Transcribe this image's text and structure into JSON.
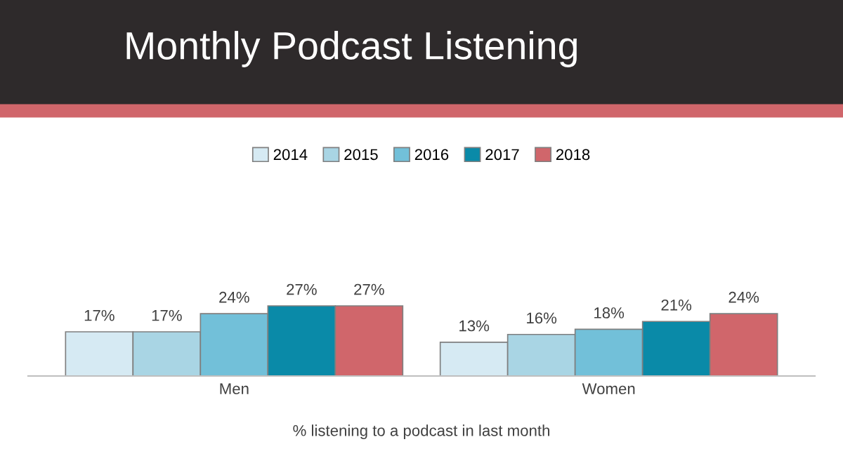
{
  "chart_data": {
    "type": "bar",
    "title": "Monthly Podcast Listening",
    "xlabel": "% listening to a podcast in last month",
    "categories": [
      "Men",
      "Women"
    ],
    "series": [
      {
        "name": "2014",
        "color": "#d6eaf3",
        "values": [
          17,
          13
        ],
        "value_labels": [
          "17%",
          "13%"
        ]
      },
      {
        "name": "2015",
        "color": "#a9d5e4",
        "values": [
          17,
          16
        ],
        "value_labels": [
          "17%",
          "16%"
        ]
      },
      {
        "name": "2016",
        "color": "#72c0d9",
        "values": [
          24,
          18
        ],
        "value_labels": [
          "24%",
          "18%"
        ]
      },
      {
        "name": "2017",
        "color": "#0a8aa8",
        "values": [
          27,
          21
        ],
        "value_labels": [
          "27%",
          "21%"
        ]
      },
      {
        "name": "2018",
        "color": "#d0666b",
        "values": [
          27,
          24
        ],
        "value_labels": [
          "27%",
          "24%"
        ]
      }
    ],
    "legend": "top"
  }
}
